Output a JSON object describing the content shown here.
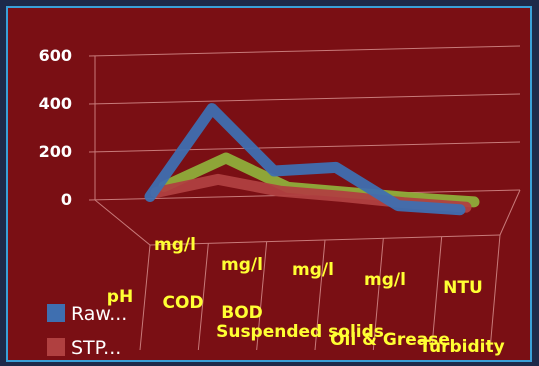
{
  "chart_data": {
    "type": "line",
    "title": "",
    "xlabel": "",
    "ylabel": "",
    "ylim": [
      0,
      600
    ],
    "y_ticks": [
      "600",
      "400",
      "200",
      "0"
    ],
    "categories": [
      {
        "unit": "pH",
        "name": ""
      },
      {
        "unit": "mg/l",
        "name": "COD"
      },
      {
        "unit": "mg/l",
        "name": "BOD"
      },
      {
        "unit": "mg/l",
        "name": "Suspended solids"
      },
      {
        "unit": "mg/l",
        "name": "Oil & Grease"
      },
      {
        "unit": "NTU",
        "name": "Turbidity"
      }
    ],
    "series": [
      {
        "name": "Raw...",
        "color": "#3f6fb0",
        "values": [
          7,
          420,
          150,
          180,
          20,
          15
        ]
      },
      {
        "name": "STP...",
        "color": "#b04040",
        "values": [
          7,
          80,
          40,
          30,
          15,
          8
        ]
      },
      {
        "name": "",
        "color": "#8fae3a",
        "values": [
          7,
          150,
          30,
          20,
          10,
          5
        ]
      }
    ],
    "legend_position": "bottom-left",
    "grid": true
  }
}
